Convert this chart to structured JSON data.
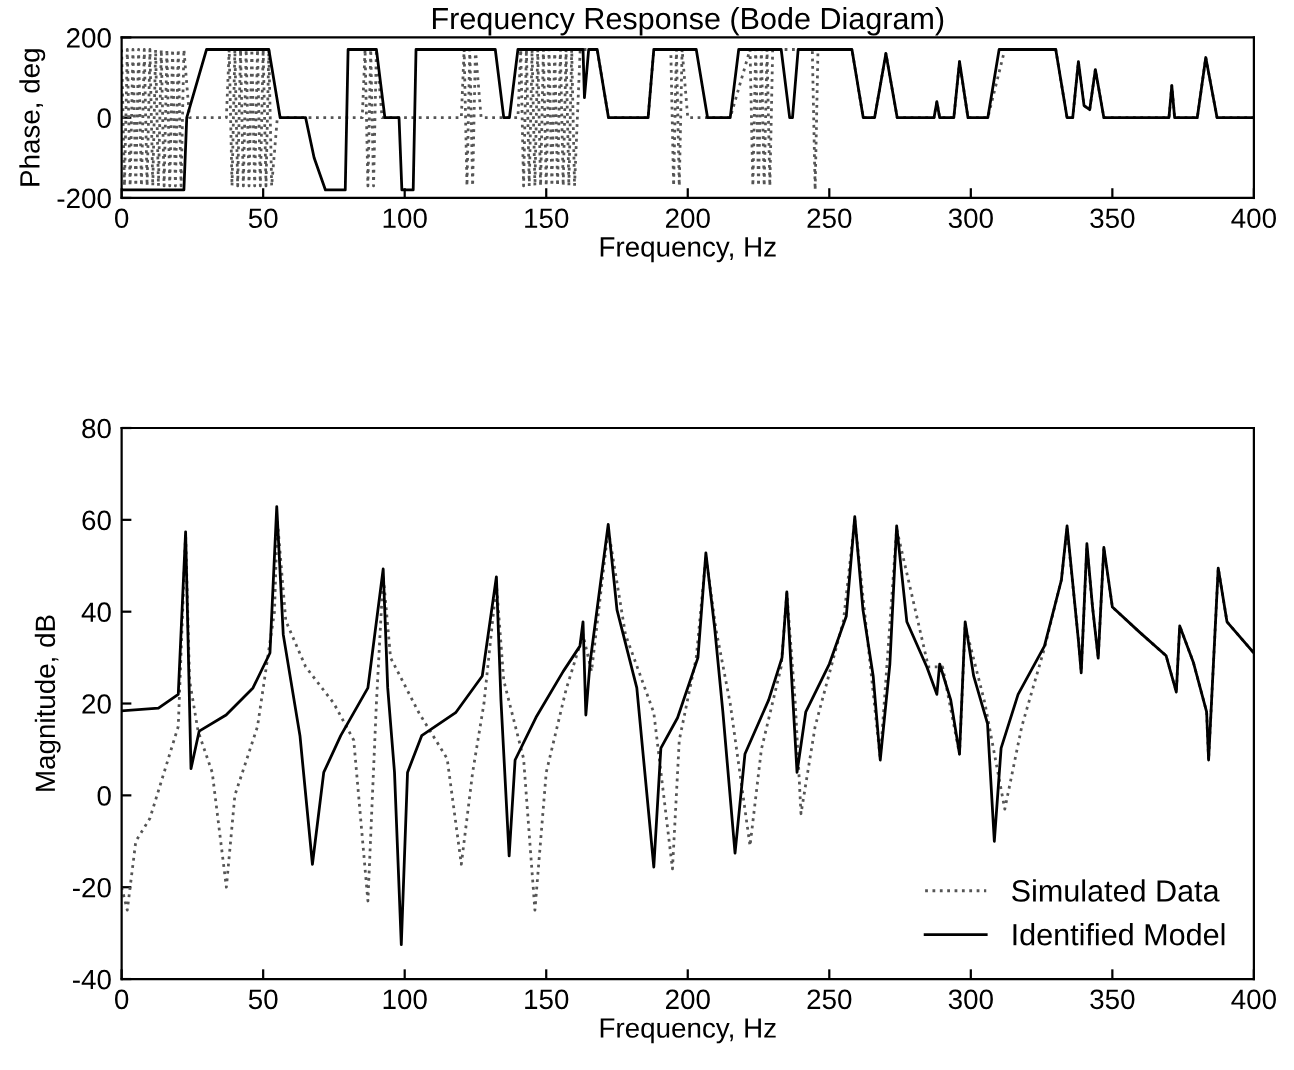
{
  "chart_data": [
    {
      "type": "line",
      "title": "Frequency Response (Bode Diagram)",
      "xlabel": "Frequency, Hz",
      "ylabel": "Phase, deg",
      "xlim": [
        0,
        400
      ],
      "ylim": [
        -200,
        200
      ],
      "xticks": [
        0,
        50,
        100,
        150,
        200,
        250,
        300,
        350,
        400
      ],
      "yticks": [
        -200,
        0,
        200
      ],
      "grid": false,
      "legend": false,
      "series": [
        {
          "color": "#555555",
          "line_style": "dotted",
          "x": [
            0,
            1,
            2,
            3,
            4,
            5,
            6,
            7,
            8,
            9,
            10,
            11,
            12,
            13,
            14,
            15,
            16,
            17,
            18,
            19,
            20,
            21,
            22,
            24,
            37,
            38,
            39,
            40,
            41,
            42,
            43,
            44,
            45,
            46,
            47,
            48,
            49,
            50,
            51,
            52,
            53,
            55,
            85,
            86,
            87,
            88,
            89,
            90,
            92,
            120,
            121,
            122,
            123,
            124,
            125,
            127,
            140,
            141,
            142,
            143,
            144,
            145,
            146,
            147,
            148,
            149,
            150,
            151,
            152,
            153,
            154,
            155,
            156,
            157,
            158,
            159,
            160,
            162,
            168,
            172,
            186,
            188,
            193,
            194,
            195,
            196,
            197,
            198,
            200,
            215,
            222,
            223,
            224,
            225,
            226,
            227,
            228,
            229,
            230,
            232,
            244,
            245,
            246,
            258,
            262,
            266,
            270,
            274,
            287,
            288,
            289,
            294,
            296,
            299,
            306,
            312,
            330,
            334,
            336,
            338,
            340,
            342,
            344,
            347,
            370,
            371,
            372,
            380,
            383,
            387,
            400
          ],
          "values": [
            170,
            -170,
            170,
            -170,
            170,
            -170,
            170,
            -170,
            170,
            -170,
            170,
            -170,
            170,
            -170,
            170,
            -170,
            170,
            -170,
            170,
            -170,
            170,
            -170,
            170,
            0,
            0,
            170,
            -170,
            170,
            -170,
            170,
            -170,
            170,
            -170,
            170,
            -170,
            170,
            -170,
            170,
            -170,
            170,
            -170,
            0,
            0,
            170,
            -170,
            170,
            -170,
            170,
            0,
            0,
            170,
            -170,
            170,
            -170,
            170,
            0,
            0,
            170,
            -170,
            170,
            -170,
            170,
            -170,
            170,
            -170,
            170,
            -170,
            170,
            -170,
            170,
            -170,
            170,
            -170,
            170,
            -170,
            170,
            -170,
            170,
            170,
            0,
            0,
            170,
            170,
            170,
            -170,
            170,
            -170,
            170,
            0,
            0,
            170,
            -170,
            170,
            -170,
            170,
            -170,
            170,
            -170,
            170,
            170,
            170,
            -180,
            170,
            170,
            0,
            0,
            160,
            0,
            0,
            40,
            0,
            0,
            140,
            0,
            0,
            170,
            170,
            0,
            0,
            140,
            30,
            20,
            120,
            0,
            0,
            80,
            0,
            0,
            150,
            0,
            0
          ]
        },
        {
          "color": "#000000",
          "line_style": "solid",
          "x": [
            0,
            22,
            23,
            30,
            52,
            56,
            65,
            68,
            72,
            79,
            80,
            90,
            93,
            98,
            99,
            103,
            104,
            132,
            135,
            137,
            140,
            163,
            163.5,
            165,
            168,
            172,
            186,
            188,
            203,
            207,
            215,
            218,
            233,
            236,
            237,
            239,
            258,
            262,
            266,
            270,
            274,
            287,
            288,
            289,
            294,
            296,
            299,
            306,
            310,
            330,
            334,
            336,
            338,
            340,
            342,
            344,
            347,
            370,
            371,
            372,
            380,
            383,
            387,
            400
          ],
          "values": [
            -180,
            -180,
            0,
            170,
            170,
            0,
            0,
            -100,
            -180,
            -180,
            170,
            170,
            0,
            0,
            -180,
            -180,
            170,
            170,
            0,
            0,
            170,
            170,
            50,
            170,
            170,
            0,
            0,
            170,
            170,
            0,
            0,
            170,
            170,
            0,
            0,
            170,
            170,
            0,
            0,
            160,
            0,
            0,
            40,
            0,
            0,
            140,
            0,
            0,
            170,
            170,
            0,
            0,
            140,
            30,
            20,
            120,
            0,
            0,
            80,
            0,
            0,
            150,
            0,
            0
          ]
        }
      ]
    },
    {
      "type": "line",
      "xlabel": "Frequency, Hz",
      "ylabel": "Magnitude, dB",
      "xlim": [
        0,
        400
      ],
      "ylim": [
        -40,
        80
      ],
      "xticks": [
        0,
        50,
        100,
        150,
        200,
        250,
        300,
        350,
        400
      ],
      "yticks": [
        -40,
        -20,
        0,
        20,
        40,
        60,
        80
      ],
      "grid": false,
      "legend": "lower right",
      "series": [
        {
          "name": "Simulated Data",
          "color": "#555555",
          "line_style": "dotted",
          "x": [
            0,
            2,
            5,
            10,
            15,
            20,
            22.6,
            24,
            27,
            32,
            37,
            40,
            48,
            54,
            55,
            58,
            65,
            75,
            82,
            87,
            90,
            92.4,
            95,
            105,
            115,
            120,
            124,
            128,
            132.4,
            135,
            142,
            146,
            150,
            157,
            163,
            166,
            171.9,
            178,
            188,
            194.6,
            197,
            203,
            206.4,
            210,
            215,
            222,
            226,
            233,
            235,
            238,
            240,
            245,
            255,
            259,
            268,
            273.8,
            285,
            290,
            296,
            298,
            305,
            312,
            318,
            326,
            332,
            334,
            338,
            339,
            341,
            343,
            345,
            347,
            350,
            359.5,
            369,
            372.6,
            373.8,
            378.6,
            383.3,
            384,
            387.4,
            390.5,
            400
          ],
          "values": [
            -20,
            -25,
            -10,
            -5,
            5,
            15,
            57,
            25,
            14,
            5,
            -20,
            0,
            15,
            40,
            60,
            38,
            28,
            20,
            12,
            -23,
            20,
            48,
            30,
            18,
            8,
            -15,
            5,
            20,
            46,
            25,
            8,
            -25,
            5,
            23,
            35,
            27,
            58,
            35,
            18,
            -16,
            12,
            30,
            52,
            36,
            20,
            -11,
            10,
            28,
            44,
            20,
            -4,
            15,
            38,
            60,
            8,
            58,
            28,
            28,
            9,
            37,
            20,
            -3,
            15,
            32,
            47,
            58,
            34,
            27,
            54,
            41,
            30,
            54,
            41,
            35.6,
            30.4,
            22.5,
            36.9,
            29,
            18.2,
            7.7,
            49.5,
            37.8,
            31
          ]
        },
        {
          "name": "Identified Model",
          "color": "#000000",
          "line_style": "solid",
          "x": [
            0,
            13,
            20,
            22.6,
            24.5,
            27.4,
            36.9,
            46.4,
            52.4,
            54.8,
            57.1,
            63,
            67.4,
            71.4,
            77.4,
            87,
            92.4,
            94,
            96.4,
            98.8,
            101,
            106,
            118,
            127.4,
            132.4,
            134,
            136.9,
            139,
            146.4,
            156,
            161.9,
            163,
            164,
            165.5,
            171.9,
            175,
            182,
            188,
            190.5,
            196.4,
            203.6,
            206.4,
            209.5,
            212.4,
            216.7,
            220.2,
            228.6,
            233.3,
            235,
            236.9,
            238.6,
            241.7,
            250,
            256,
            259,
            261.9,
            265.5,
            268,
            271.4,
            273.8,
            277.4,
            284.5,
            288,
            289,
            292.9,
            296,
            298,
            301,
            305.9,
            308.3,
            310.7,
            316.7,
            326,
            332,
            334,
            338,
            339,
            341,
            343,
            345,
            347,
            350,
            359.5,
            369,
            372.6,
            373.8,
            378.6,
            383.3,
            384,
            387.4,
            390.5,
            400
          ],
          "values": [
            18.4,
            19,
            22,
            57.4,
            5.8,
            14,
            17.5,
            23.4,
            31,
            62.9,
            35,
            13,
            -15,
            5,
            13,
            23.4,
            49.3,
            23.4,
            5,
            -32.5,
            5,
            13,
            18,
            26,
            47.6,
            20.8,
            -13.2,
            7.7,
            17,
            27,
            32.5,
            37.8,
            17.5,
            29,
            59,
            40.4,
            23.4,
            -15.6,
            10.3,
            16.9,
            30,
            52.8,
            36.5,
            18.2,
            -12.6,
            9,
            20.8,
            30,
            44.3,
            23.4,
            5,
            18.2,
            28.6,
            39,
            60.7,
            40.4,
            26,
            7.7,
            28.6,
            58.7,
            37.8,
            27.9,
            22,
            28.6,
            20.8,
            9,
            37.8,
            26,
            15.6,
            -10,
            10.3,
            22,
            32.5,
            46.9,
            58.7,
            33.8,
            26.7,
            54.8,
            41,
            29.9,
            54,
            41,
            35.6,
            30.4,
            22.5,
            36.9,
            29,
            18.2,
            7.7,
            49.5,
            37.8,
            31
          ]
        }
      ]
    }
  ]
}
